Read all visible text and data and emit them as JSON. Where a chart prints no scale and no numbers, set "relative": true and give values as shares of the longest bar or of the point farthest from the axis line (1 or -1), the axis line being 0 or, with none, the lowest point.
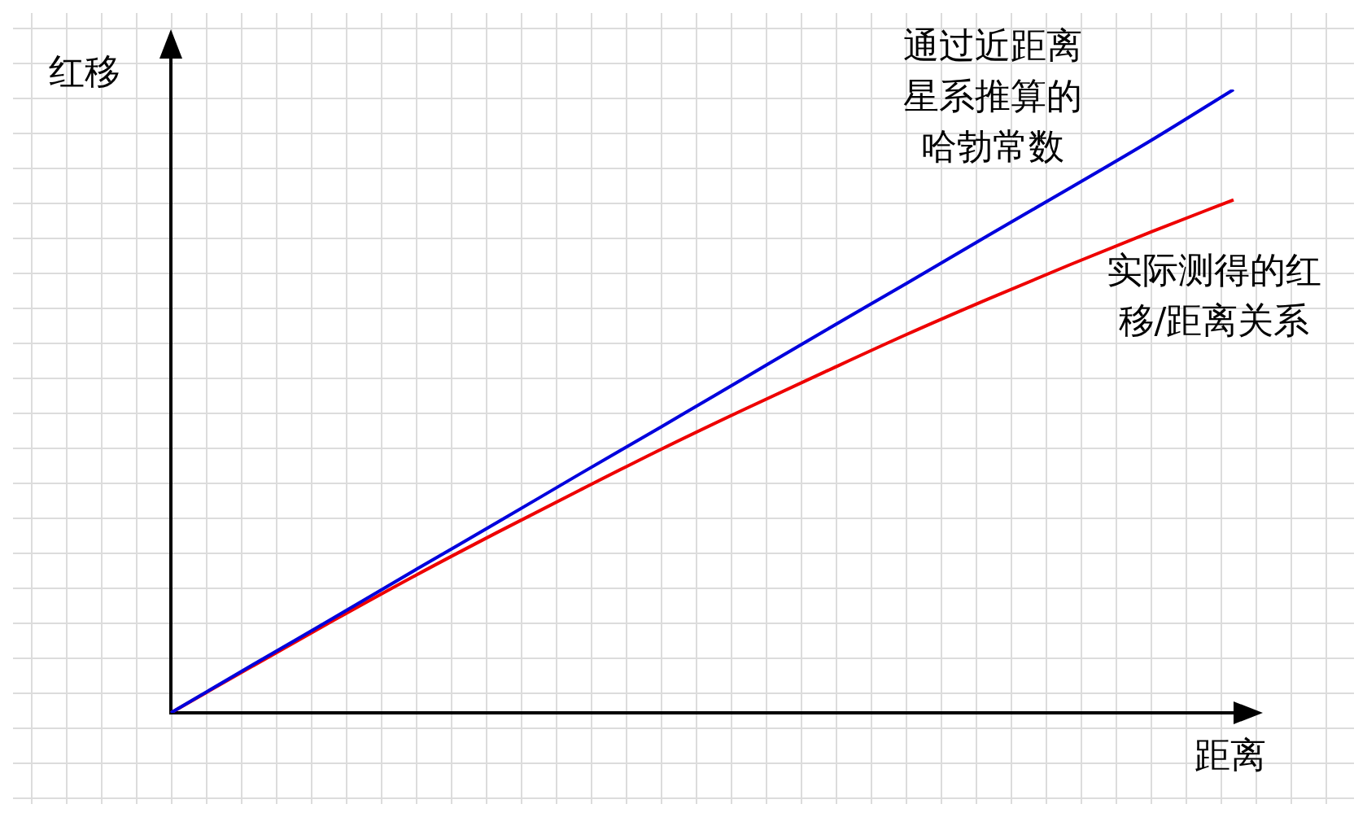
{
  "chart_data": {
    "type": "line",
    "relative": true,
    "xlabel": "距离",
    "ylabel": "红移",
    "categories": [
      null,
      null,
      null,
      null,
      null,
      null,
      null,
      null,
      null,
      null,
      null,
      null,
      null,
      null
    ],
    "series": [
      {
        "name": "通过近距离星系推算的哈勃常数",
        "color": "#0000dd",
        "values": [
          0,
          0.077,
          0.153,
          0.23,
          0.306,
          0.383,
          0.459,
          0.536,
          0.613,
          0.689,
          0.766,
          0.842,
          0.919,
          1
        ]
      },
      {
        "name": "实际测得的红移/距离关系",
        "color": "#ee0000",
        "values": [
          0,
          0.075,
          0.149,
          0.221,
          0.29,
          0.357,
          0.423,
          0.486,
          0.547,
          0.607,
          0.664,
          0.719,
          0.772,
          0.823
        ]
      }
    ],
    "legend": false,
    "marker": "none",
    "line_style": "solid"
  }
}
